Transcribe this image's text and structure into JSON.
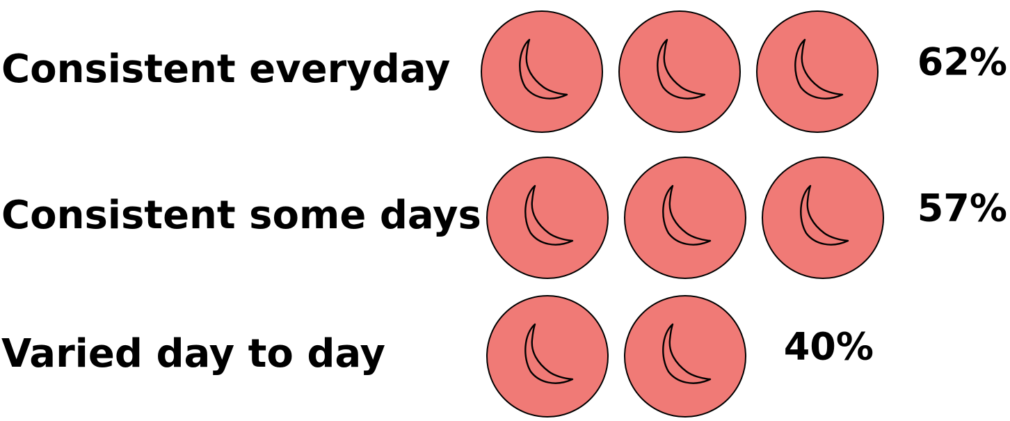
{
  "chart_data": {
    "type": "pictograph",
    "icon": "moon-icon",
    "icon_color": "#f07a76",
    "categories": [
      "Consistent everyday",
      "Consistent some days",
      "Varied day to day"
    ],
    "values": [
      62,
      57,
      40
    ],
    "value_labels": [
      "62%",
      "57%",
      "40%"
    ],
    "icon_counts": [
      3,
      3,
      2
    ],
    "title": "",
    "xlabel": "",
    "ylabel": ""
  }
}
